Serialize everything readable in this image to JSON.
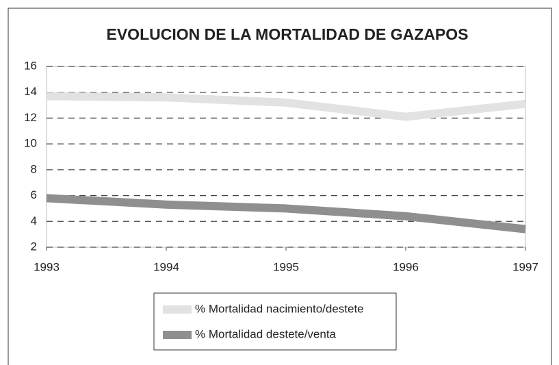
{
  "chart_data": {
    "type": "line",
    "title": "EVOLUCION DE LA MORTALIDAD DE GAZAPOS",
    "x": [
      1993,
      1994,
      1995,
      1996,
      1997
    ],
    "series": [
      {
        "name": "% Mortalidad nacimiento/destete",
        "color": "#e2e2e2",
        "values": [
          13.7,
          13.6,
          13.2,
          12.1,
          13.1
        ]
      },
      {
        "name": "% Mortalidad destete/venta",
        "color": "#8f8f8f",
        "values": [
          5.8,
          5.3,
          5.0,
          4.4,
          3.4
        ]
      }
    ],
    "xlim": [
      1993,
      1997
    ],
    "xticks": [
      1993,
      1994,
      1995,
      1996,
      1997
    ],
    "ylim": [
      2,
      16
    ],
    "yticks": [
      2,
      4,
      6,
      8,
      10,
      12,
      14,
      16
    ],
    "grid": true,
    "legend": "bottom"
  }
}
